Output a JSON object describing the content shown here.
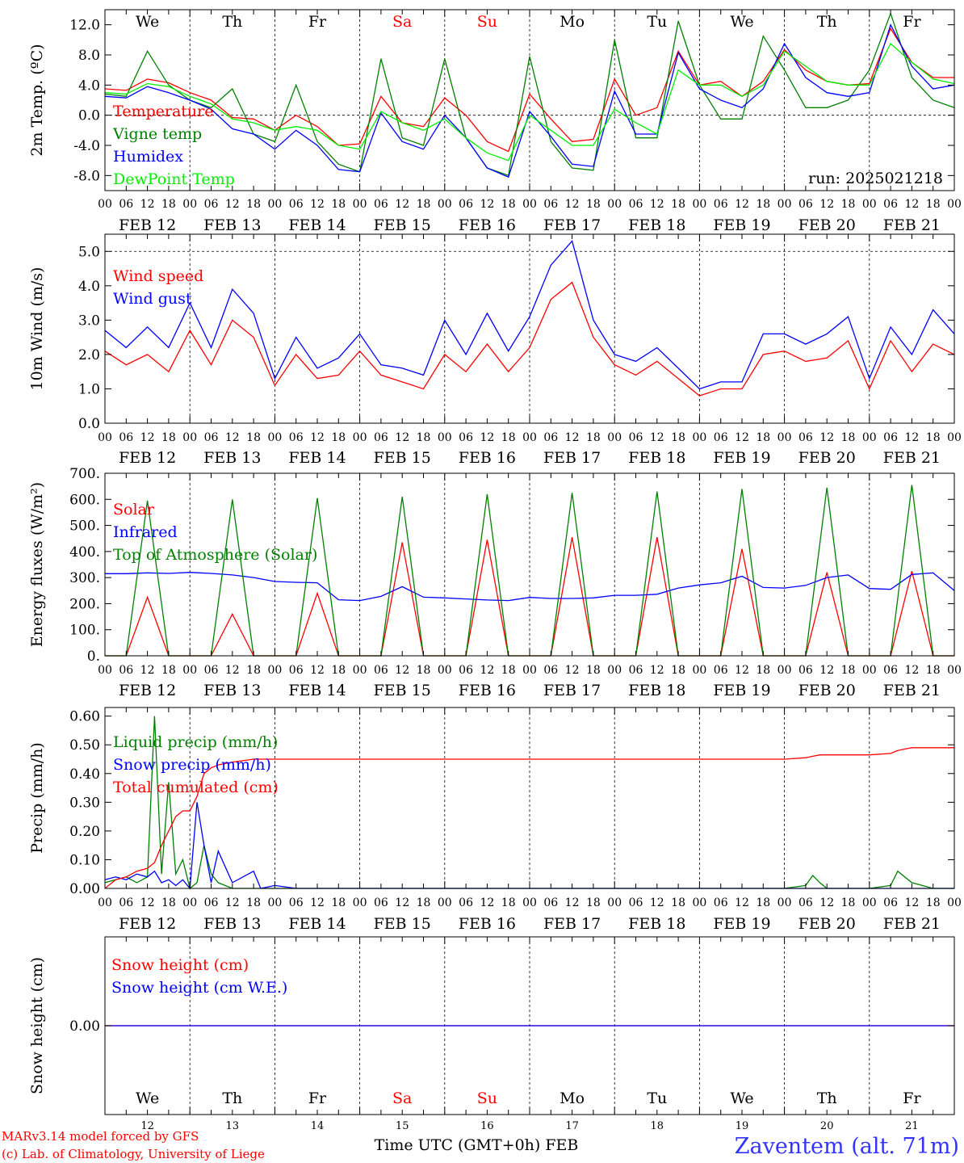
{
  "footer": {
    "credit_line1": "MARv3.14 model forced by GFS",
    "credit_line2": "(c) Lab. of Climatology, University of Liege",
    "xlabel": "Time UTC (GMT+0h) FEB",
    "station": "Zaventem (alt. 71m)"
  },
  "days": {
    "weekdays": [
      "We",
      "Th",
      "Fr",
      "Sa",
      "Su",
      "Mo",
      "Tu",
      "We",
      "Th",
      "Fr"
    ],
    "weekend_flags": [
      false,
      false,
      false,
      true,
      true,
      false,
      false,
      false,
      false,
      false
    ],
    "dates": [
      "FEB 12",
      "FEB 13",
      "FEB 14",
      "FEB 15",
      "FEB 16",
      "FEB 17",
      "FEB 18",
      "FEB 19",
      "FEB 20",
      "FEB 21"
    ],
    "day_numbers": [
      "12",
      "13",
      "14",
      "15",
      "16",
      "17",
      "18",
      "19",
      "20",
      "21"
    ],
    "hour_ticks": [
      "00",
      "06",
      "12",
      "18"
    ],
    "final_tick": "00"
  },
  "colors": {
    "red": "#ff0000",
    "green": "#008000",
    "blue": "#0000ff",
    "lightgreen": "#00ee00",
    "station_blue": "#3333ff"
  },
  "chart_data": [
    {
      "type": "line",
      "ylabel": "2m Temp. (ºC)",
      "annotation": "run: 2025021218",
      "ylim": [
        -10,
        14
      ],
      "yticks": [
        "-8.0",
        "-4.0",
        "0.0",
        "4.0",
        "8.0",
        "12.0"
      ],
      "ytick_values": [
        -8,
        -4,
        0,
        4,
        8,
        12
      ],
      "reference_line": 0,
      "x_hours": [
        0,
        6,
        12,
        18,
        24,
        30,
        36,
        42,
        48,
        54,
        60,
        66,
        72,
        78,
        84,
        90,
        96,
        102,
        108,
        114,
        120,
        126,
        132,
        138,
        144,
        150,
        156,
        162,
        168,
        174,
        180,
        186,
        192,
        198,
        204,
        210,
        216,
        222,
        228,
        234,
        240
      ],
      "series": [
        {
          "name": "Temperature",
          "color": "red",
          "values": [
            3.5,
            3.3,
            4.8,
            4.3,
            3.0,
            2.0,
            -0.3,
            -0.5,
            -2.0,
            0.0,
            -1.5,
            -4.0,
            -3.8,
            2.5,
            -1.0,
            -1.5,
            2.3,
            0.0,
            -3.5,
            -4.8,
            2.8,
            -0.5,
            -3.5,
            -3.2,
            4.8,
            0.0,
            1.0,
            8.5,
            4.0,
            4.5,
            2.5,
            4.5,
            8.7,
            6.0,
            4.5,
            4.0,
            4.2,
            11.5,
            7.0,
            5.0,
            5.0
          ]
        },
        {
          "name": "Vigne temp",
          "color": "green",
          "values": [
            2.8,
            2.5,
            8.5,
            4.0,
            2.0,
            1.0,
            3.5,
            -2.5,
            -3.5,
            4.0,
            -3.5,
            -6.5,
            -7.5,
            7.5,
            -3.0,
            -4.0,
            7.5,
            -3.0,
            -7.0,
            -8.0,
            7.8,
            -3.5,
            -7.0,
            -7.3,
            10.0,
            -3.0,
            -3.0,
            12.5,
            4.0,
            -0.5,
            -0.5,
            10.5,
            6.0,
            1.0,
            1.0,
            2.0,
            6.0,
            13.5,
            5.0,
            2.0,
            1.0
          ]
        },
        {
          "name": "Humidex",
          "color": "blue",
          "values": [
            2.5,
            2.3,
            3.8,
            3.0,
            2.0,
            0.8,
            -1.8,
            -2.5,
            -4.5,
            -2.0,
            -4.0,
            -7.2,
            -7.5,
            0.3,
            -3.5,
            -4.5,
            0.0,
            -3.0,
            -7.0,
            -8.2,
            0.5,
            -2.8,
            -6.5,
            -6.8,
            3.2,
            -2.5,
            -2.5,
            8.3,
            3.5,
            2.0,
            1.0,
            3.5,
            9.5,
            5.0,
            3.0,
            2.5,
            3.0,
            12.0,
            6.5,
            3.5,
            4.0
          ]
        },
        {
          "name": "DewPoint Temp",
          "color": "lightgreen",
          "values": [
            3.0,
            2.8,
            4.2,
            3.8,
            2.5,
            1.5,
            -0.5,
            -1.0,
            -2.0,
            -1.5,
            -2.0,
            -4.0,
            -4.5,
            0.5,
            -1.0,
            -2.0,
            -0.5,
            -3.0,
            -5.0,
            -6.0,
            0.0,
            -2.0,
            -4.0,
            -4.0,
            0.8,
            -1.0,
            -2.5,
            6.0,
            4.0,
            4.0,
            2.5,
            4.0,
            8.5,
            6.5,
            4.5,
            4.0,
            4.0,
            9.5,
            7.0,
            4.8,
            4.2
          ]
        }
      ]
    },
    {
      "type": "line",
      "ylabel": "10m Wind (m/s)",
      "ylim": [
        0,
        5.5
      ],
      "yticks": [
        "0.0",
        "1.0",
        "2.0",
        "3.0",
        "4.0",
        "5.0"
      ],
      "ytick_values": [
        0,
        1,
        2,
        3,
        4,
        5
      ],
      "reference_line": 5,
      "x_hours": [
        0,
        6,
        12,
        18,
        24,
        30,
        36,
        42,
        48,
        54,
        60,
        66,
        72,
        78,
        84,
        90,
        96,
        102,
        108,
        114,
        120,
        126,
        132,
        138,
        144,
        150,
        156,
        162,
        168,
        174,
        180,
        186,
        192,
        198,
        204,
        210,
        216,
        222,
        228,
        234,
        240
      ],
      "series": [
        {
          "name": "Wind speed",
          "color": "red",
          "values": [
            2.1,
            1.7,
            2.0,
            1.5,
            2.7,
            1.7,
            3.0,
            2.5,
            1.1,
            2.0,
            1.3,
            1.4,
            2.1,
            1.4,
            1.2,
            1.0,
            2.0,
            1.5,
            2.3,
            1.5,
            2.2,
            3.6,
            4.1,
            2.5,
            1.7,
            1.4,
            1.8,
            1.3,
            0.8,
            1.0,
            1.0,
            2.0,
            2.1,
            1.8,
            1.9,
            2.4,
            1.0,
            2.4,
            1.5,
            2.3,
            2.0
          ]
        },
        {
          "name": "Wind gust",
          "color": "blue",
          "values": [
            2.7,
            2.2,
            2.8,
            2.2,
            3.5,
            2.2,
            3.9,
            3.2,
            1.3,
            2.5,
            1.6,
            1.9,
            2.6,
            1.7,
            1.6,
            1.4,
            3.0,
            2.0,
            3.2,
            2.1,
            3.1,
            4.6,
            5.3,
            3.0,
            2.0,
            1.8,
            2.2,
            1.6,
            1.0,
            1.2,
            1.2,
            2.6,
            2.6,
            2.3,
            2.6,
            3.1,
            1.3,
            2.8,
            2.0,
            3.3,
            2.6
          ]
        }
      ]
    },
    {
      "type": "line",
      "ylabel": "Energy fluxes (W/m²)",
      "ylim": [
        0,
        700
      ],
      "yticks": [
        "0.",
        "100.",
        "200.",
        "300.",
        "400.",
        "500.",
        "600.",
        "700."
      ],
      "ytick_values": [
        0,
        100,
        200,
        300,
        400,
        500,
        600,
        700
      ],
      "x_hours": [
        0,
        6,
        12,
        18,
        24,
        30,
        36,
        42,
        48,
        54,
        60,
        66,
        72,
        78,
        84,
        90,
        96,
        102,
        108,
        114,
        120,
        126,
        132,
        138,
        144,
        150,
        156,
        162,
        168,
        174,
        180,
        186,
        192,
        198,
        204,
        210,
        216,
        222,
        228,
        234,
        240
      ],
      "series": [
        {
          "name": "Solar",
          "color": "red",
          "values": [
            0,
            0,
            225,
            0,
            0,
            0,
            160,
            0,
            0,
            0,
            240,
            0,
            0,
            0,
            435,
            0,
            0,
            0,
            445,
            0,
            0,
            0,
            455,
            0,
            0,
            0,
            455,
            0,
            0,
            0,
            410,
            0,
            0,
            0,
            320,
            0,
            0,
            0,
            325,
            0,
            0
          ]
        },
        {
          "name": "Infrared",
          "color": "blue",
          "values": [
            315,
            315,
            318,
            316,
            320,
            316,
            310,
            300,
            285,
            282,
            280,
            215,
            212,
            228,
            265,
            225,
            222,
            218,
            214,
            212,
            224,
            220,
            220,
            222,
            232,
            232,
            236,
            260,
            272,
            280,
            305,
            262,
            260,
            270,
            300,
            310,
            258,
            255,
            312,
            318,
            250
          ]
        },
        {
          "name": "Top of Atmosphere (Solar)",
          "color": "green",
          "values": [
            0,
            0,
            595,
            0,
            0,
            0,
            600,
            0,
            0,
            0,
            605,
            0,
            0,
            0,
            610,
            0,
            0,
            0,
            620,
            0,
            0,
            0,
            625,
            0,
            0,
            0,
            630,
            0,
            0,
            0,
            640,
            0,
            0,
            0,
            645,
            0,
            0,
            0,
            655,
            0,
            0
          ]
        }
      ]
    },
    {
      "type": "line",
      "ylabel": "Precip (mm/h)",
      "ylim": [
        0,
        0.63
      ],
      "yticks": [
        "0.00",
        "0.10",
        "0.20",
        "0.30",
        "0.40",
        "0.50",
        "0.60"
      ],
      "ytick_values": [
        0,
        0.1,
        0.2,
        0.3,
        0.4,
        0.5,
        0.6
      ],
      "x_hours": [
        0,
        3,
        6,
        9,
        12,
        14,
        16,
        18,
        20,
        22,
        24,
        26,
        28,
        30,
        32,
        36,
        42,
        44,
        48,
        54,
        60,
        66,
        72,
        96,
        120,
        144,
        168,
        192,
        198,
        200,
        202,
        204,
        210,
        216,
        222,
        224,
        228,
        234,
        240
      ],
      "series": [
        {
          "name": "Liquid precip (mm/h)",
          "color": "green",
          "values": [
            0.02,
            0.03,
            0.04,
            0.02,
            0.04,
            0.6,
            0.05,
            0.37,
            0.05,
            0.1,
            0.0,
            0.02,
            0.15,
            0.05,
            0.02,
            0.0,
            0.0,
            0.0,
            0.0,
            0.0,
            0.0,
            0.0,
            0.0,
            0.0,
            0.0,
            0.0,
            0.0,
            0.0,
            0.01,
            0.045,
            0.02,
            0.0,
            0.0,
            0.0,
            0.01,
            0.06,
            0.02,
            0.0,
            0.0
          ]
        },
        {
          "name": "Snow precip (mm/h)",
          "color": "blue",
          "values": [
            0.03,
            0.04,
            0.03,
            0.05,
            0.04,
            0.06,
            0.02,
            0.03,
            0.01,
            0.03,
            0.0,
            0.3,
            0.15,
            0.02,
            0.13,
            0.02,
            0.06,
            0.0,
            0.01,
            0.0,
            0.0,
            0.0,
            0.0,
            0.0,
            0.0,
            0.0,
            0.0,
            0.0,
            0.0,
            0.0,
            0.0,
            0.0,
            0.0,
            0.0,
            0.0,
            0.0,
            0.0,
            0.0,
            0.0
          ]
        },
        {
          "name": "Total cumulated (cm)",
          "color": "red",
          "values": [
            0.0,
            0.03,
            0.04,
            0.06,
            0.07,
            0.09,
            0.15,
            0.2,
            0.25,
            0.27,
            0.27,
            0.32,
            0.4,
            0.42,
            0.43,
            0.44,
            0.45,
            0.45,
            0.45,
            0.45,
            0.45,
            0.45,
            0.45,
            0.45,
            0.45,
            0.45,
            0.45,
            0.45,
            0.455,
            0.46,
            0.465,
            0.465,
            0.465,
            0.465,
            0.47,
            0.48,
            0.49,
            0.49,
            0.49
          ]
        }
      ]
    },
    {
      "type": "line",
      "ylabel": "Snow height (cm)",
      "ylim": [
        -1,
        1
      ],
      "yticks": [
        "0.00"
      ],
      "ytick_values": [
        0
      ],
      "x_hours": [
        0,
        240
      ],
      "series": [
        {
          "name": "Snow height (cm)",
          "color": "red",
          "values": [
            0,
            0
          ]
        },
        {
          "name": "Snow height (cm W.E.)",
          "color": "blue",
          "values": [
            0,
            0
          ]
        }
      ]
    }
  ]
}
